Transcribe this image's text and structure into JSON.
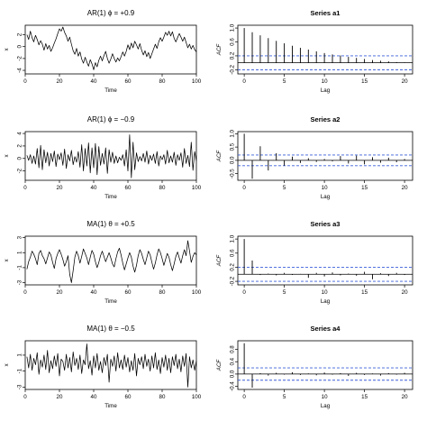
{
  "panels": [
    {
      "title": "AR(1)  ϕ = +0.9",
      "xlabel": "Time",
      "ylabel": "x"
    },
    {
      "title": "AR(1)  ϕ = −0.9",
      "xlabel": "Time",
      "ylabel": "x"
    },
    {
      "title": "MA(1)  θ = +0.5",
      "xlabel": "Time",
      "ylabel": "x"
    },
    {
      "title": "MA(1)  θ = −0.5",
      "xlabel": "Time",
      "ylabel": "x"
    }
  ],
  "acf_panels": [
    {
      "title": "Series  a1",
      "xlabel": "Lag",
      "ylabel": "ACF"
    },
    {
      "title": "Series  a2",
      "xlabel": "Lag",
      "ylabel": "ACF"
    },
    {
      "title": "Series  a3",
      "xlabel": "Lag",
      "ylabel": "ACF"
    },
    {
      "title": "Series  a4",
      "xlabel": "Lag",
      "ylabel": "ACF"
    }
  ],
  "chart_data": [
    {
      "type": "line",
      "title": "AR(1)  ϕ = +0.9",
      "xlabel": "Time",
      "ylabel": "x",
      "xlim": [
        0,
        100
      ],
      "ylim": [
        -4.6,
        3.6
      ],
      "xticks": [
        0,
        20,
        40,
        60,
        80,
        100
      ],
      "yticks": [
        -4,
        -2,
        0,
        2
      ],
      "x_start": 1,
      "values": [
        2.0,
        1.2,
        2.6,
        1.5,
        0.8,
        1.9,
        1.2,
        0.3,
        1.0,
        0.4,
        -0.6,
        0.5,
        -0.4,
        0.2,
        -0.8,
        -0.2,
        0.6,
        1.3,
        2.2,
        3.0,
        2.6,
        3.3,
        2.4,
        1.8,
        0.9,
        1.6,
        0.4,
        -0.7,
        -1.3,
        -0.3,
        -1.6,
        -0.9,
        -2.1,
        -2.8,
        -1.8,
        -2.6,
        -3.3,
        -2.2,
        -2.9,
        -3.9,
        -2.7,
        -3.4,
        -2.3,
        -1.6,
        -2.4,
        -1.5,
        -0.8,
        -2.0,
        -2.8,
        -2.1,
        -1.2,
        -2.0,
        -2.6,
        -1.9,
        -2.4,
        -1.7,
        -0.9,
        -1.6,
        -0.8,
        0.3,
        -0.5,
        0.6,
        -0.2,
        0.9,
        0.3,
        -0.4,
        0.5,
        -0.6,
        -1.4,
        -0.7,
        -1.7,
        -1.0,
        -2.0,
        -1.2,
        -0.4,
        0.4,
        -0.3,
        0.8,
        1.5,
        0.9,
        1.6,
        2.4,
        1.9,
        2.6,
        1.8,
        2.5,
        1.4,
        0.8,
        1.5,
        2.2,
        1.6,
        0.9,
        1.6,
        0.7,
        -0.2,
        0.4,
        -0.4,
        0.2,
        -0.5,
        -0.9
      ]
    },
    {
      "type": "line",
      "title": "AR(1)  ϕ = −0.9",
      "xlabel": "Time",
      "ylabel": "x",
      "xlim": [
        0,
        100
      ],
      "ylim": [
        -3.5,
        4.3
      ],
      "xticks": [
        0,
        20,
        40,
        60,
        80,
        100
      ],
      "yticks": [
        -2,
        0,
        2,
        4
      ],
      "x_start": 1,
      "values": [
        0.5,
        -0.3,
        0.6,
        -0.8,
        0.4,
        -0.9,
        1.6,
        -1.5,
        2.1,
        -1.8,
        1.4,
        -0.7,
        1.0,
        -1.2,
        0.8,
        -0.5,
        1.2,
        -1.3,
        0.7,
        -0.2,
        0.9,
        -1.1,
        1.5,
        -1.6,
        0.6,
        -0.4,
        1.3,
        -1.0,
        0.3,
        -0.6,
        1.1,
        -1.4,
        2.2,
        -2.0,
        1.6,
        -1.2,
        2.5,
        -2.3,
        1.7,
        -1.5,
        2.4,
        -2.6,
        1.9,
        -1.1,
        0.8,
        -0.9,
        1.7,
        -2.4,
        1.4,
        -0.6,
        1.0,
        -0.8,
        0.4,
        -0.7,
        0.2,
        -0.3,
        0.6,
        -1.2,
        1.4,
        -2.0,
        3.8,
        -3.1,
        2.6,
        -1.8,
        0.9,
        -0.5,
        0.3,
        -0.4,
        0.8,
        -0.6,
        1.2,
        -0.9,
        0.5,
        -0.3,
        0.7,
        -0.8,
        1.1,
        -1.2,
        0.4,
        -0.2,
        0.6,
        -0.9,
        1.3,
        -0.7,
        0.4,
        -0.6,
        1.0,
        -1.1,
        0.6,
        -0.3,
        0.9,
        -1.4,
        1.6,
        -0.8,
        0.5,
        -1.3,
        2.6,
        -1.9,
        1.1,
        -0.4
      ]
    },
    {
      "type": "line",
      "title": "MA(1)  θ = +0.5",
      "xlabel": "Time",
      "ylabel": "x",
      "xlim": [
        0,
        100
      ],
      "ylim": [
        -3.3,
        3.2
      ],
      "xticks": [
        0,
        20,
        40,
        60,
        80,
        100
      ],
      "yticks": [
        -3,
        -1,
        1,
        3
      ],
      "x_start": 1,
      "values": [
        -1.2,
        -0.2,
        0.4,
        1.2,
        0.8,
        0.2,
        -0.6,
        0.9,
        1.3,
        0.6,
        0.2,
        -0.5,
        0.3,
        1.1,
        0.7,
        -0.3,
        -1.1,
        0.2,
        0.9,
        1.4,
        0.8,
        0.1,
        -0.8,
        -0.2,
        0.6,
        -1.9,
        -3.0,
        -1.4,
        0.4,
        1.2,
        0.6,
        -0.4,
        0.5,
        1.5,
        0.9,
        0.3,
        -0.6,
        0.4,
        1.3,
        0.8,
        -0.2,
        -1.0,
        -0.3,
        0.6,
        1.2,
        0.5,
        -0.2,
        0.4,
        1.0,
        0.3,
        -0.5,
        -0.9,
        0.2,
        1.1,
        1.6,
        0.7,
        -0.4,
        -1.3,
        -0.5,
        0.3,
        1.0,
        0.4,
        -0.8,
        -1.6,
        -0.7,
        0.6,
        1.4,
        0.9,
        0.1,
        -0.6,
        0.3,
        1.2,
        0.7,
        -0.3,
        -1.2,
        -0.4,
        0.7,
        1.5,
        1.0,
        0.2,
        -0.7,
        0.1,
        0.9,
        0.4,
        -0.6,
        -1.4,
        -0.5,
        0.5,
        1.1,
        0.3,
        -0.4,
        0.6,
        1.4,
        0.6,
        2.6,
        1.2,
        -0.3,
        0.5,
        1.0,
        0.7
      ]
    },
    {
      "type": "line",
      "title": "MA(1)  θ = −0.5",
      "xlabel": "Time",
      "ylabel": "x",
      "xlim": [
        0,
        100
      ],
      "ylim": [
        -3.3,
        2.8
      ],
      "xticks": [
        0,
        20,
        40,
        60,
        80,
        100
      ],
      "yticks": [
        -3,
        -1,
        1
      ],
      "x_start": 1,
      "values": [
        0.8,
        -0.6,
        1.1,
        -0.9,
        0.6,
        -0.2,
        1.3,
        -1.4,
        0.4,
        -0.5,
        1.0,
        -0.8,
        1.6,
        -1.2,
        0.3,
        -0.7,
        0.9,
        -0.4,
        1.2,
        -1.6,
        0.5,
        0.2,
        -0.9,
        1.1,
        -0.6,
        0.7,
        -1.1,
        1.4,
        -0.3,
        0.6,
        -0.8,
        1.0,
        -1.3,
        0.4,
        -0.2,
        2.4,
        -0.7,
        0.3,
        -1.5,
        0.9,
        -0.6,
        1.2,
        -0.9,
        0.2,
        -1.2,
        0.7,
        -0.3,
        1.1,
        -2.4,
        0.5,
        -0.4,
        0.9,
        -1.0,
        1.3,
        -0.6,
        0.4,
        -0.8,
        1.0,
        -0.5,
        0.7,
        -1.1,
        0.3,
        -0.9,
        1.2,
        -1.6,
        0.6,
        -0.2,
        0.8,
        -0.7,
        1.1,
        -0.4,
        0.5,
        -1.0,
        0.9,
        -0.6,
        1.3,
        -0.8,
        0.4,
        -1.3,
        0.7,
        -0.5,
        1.0,
        -0.9,
        0.6,
        -1.2,
        0.8,
        -0.3,
        1.1,
        -0.7,
        0.5,
        -1.1,
        0.9,
        -0.4,
        1.2,
        -3.0,
        0.8,
        -0.6,
        0.4,
        -0.9,
        0.3
      ]
    },
    {
      "type": "bar",
      "title": "Series  a1",
      "xlabel": "Lag",
      "ylabel": "ACF",
      "xlim": [
        -0.8,
        21
      ],
      "ylim": [
        -0.32,
        1.08
      ],
      "xticks": [
        0,
        5,
        10,
        15,
        20
      ],
      "yticks": [
        -0.2,
        0.2,
        0.6,
        1.0
      ],
      "ci": 0.2,
      "lags": [
        0,
        1,
        2,
        3,
        4,
        5,
        6,
        7,
        8,
        9,
        10,
        11,
        12,
        13,
        14,
        15,
        16,
        17,
        18,
        19,
        20
      ],
      "values": [
        1.0,
        0.88,
        0.79,
        0.71,
        0.63,
        0.56,
        0.49,
        0.43,
        0.38,
        0.33,
        0.28,
        0.24,
        0.21,
        0.17,
        0.14,
        0.11,
        0.08,
        0.06,
        0.04,
        0.02,
        0.01
      ]
    },
    {
      "type": "bar",
      "title": "Series  a2",
      "xlabel": "Lag",
      "ylabel": "ACF",
      "xlim": [
        -0.8,
        21
      ],
      "ylim": [
        -0.75,
        1.08
      ],
      "xticks": [
        0,
        5,
        10,
        15,
        20
      ],
      "yticks": [
        -0.5,
        0.0,
        0.5,
        1.0
      ],
      "ci": 0.2,
      "lags": [
        0,
        1,
        2,
        3,
        4,
        5,
        6,
        7,
        8,
        9,
        10,
        11,
        12,
        13,
        14,
        15,
        16,
        17,
        18,
        19,
        20
      ],
      "values": [
        1.0,
        -0.69,
        0.53,
        -0.38,
        0.27,
        -0.2,
        0.14,
        -0.1,
        0.08,
        -0.06,
        0.05,
        -0.04,
        0.16,
        -0.12,
        0.18,
        -0.15,
        0.12,
        -0.09,
        0.1,
        -0.07,
        0.05
      ]
    },
    {
      "type": "bar",
      "title": "Series  a3",
      "xlabel": "Lag",
      "ylabel": "ACF",
      "xlim": [
        -0.8,
        21
      ],
      "ylim": [
        -0.3,
        1.08
      ],
      "xticks": [
        0,
        5,
        10,
        15,
        20
      ],
      "yticks": [
        -0.2,
        0.2,
        0.6,
        1.0
      ],
      "ci": 0.2,
      "lags": [
        0,
        1,
        2,
        3,
        4,
        5,
        6,
        7,
        8,
        9,
        10,
        11,
        12,
        13,
        14,
        15,
        16,
        17,
        18,
        19,
        20
      ],
      "values": [
        1.0,
        0.39,
        -0.02,
        0.02,
        -0.03,
        0.04,
        -0.02,
        0.01,
        -0.1,
        0.04,
        -0.06,
        0.05,
        -0.03,
        0.02,
        -0.04,
        0.07,
        -0.14,
        0.03,
        -0.05,
        0.04,
        -0.02
      ]
    },
    {
      "type": "bar",
      "title": "Series  a4",
      "xlabel": "Lag",
      "ylabel": "ACF",
      "xlim": [
        -0.8,
        21
      ],
      "ylim": [
        -0.5,
        1.08
      ],
      "xticks": [
        0,
        5,
        10,
        15,
        20
      ],
      "yticks": [
        -0.4,
        0.0,
        0.4,
        0.8
      ],
      "ci": 0.2,
      "lags": [
        0,
        1,
        2,
        3,
        4,
        5,
        6,
        7,
        8,
        9,
        10,
        11,
        12,
        13,
        14,
        15,
        16,
        17,
        18,
        19,
        20
      ],
      "values": [
        1.0,
        -0.44,
        0.03,
        -0.05,
        0.04,
        -0.02,
        0.06,
        -0.03,
        0.02,
        -0.04,
        0.05,
        -0.02,
        0.03,
        -0.06,
        0.04,
        -0.03,
        0.02,
        -0.05,
        0.03,
        -0.02,
        0.04
      ]
    }
  ],
  "colors": {
    "line": "#000000",
    "ci": "#3a5fd9",
    "axis": "#000000"
  }
}
